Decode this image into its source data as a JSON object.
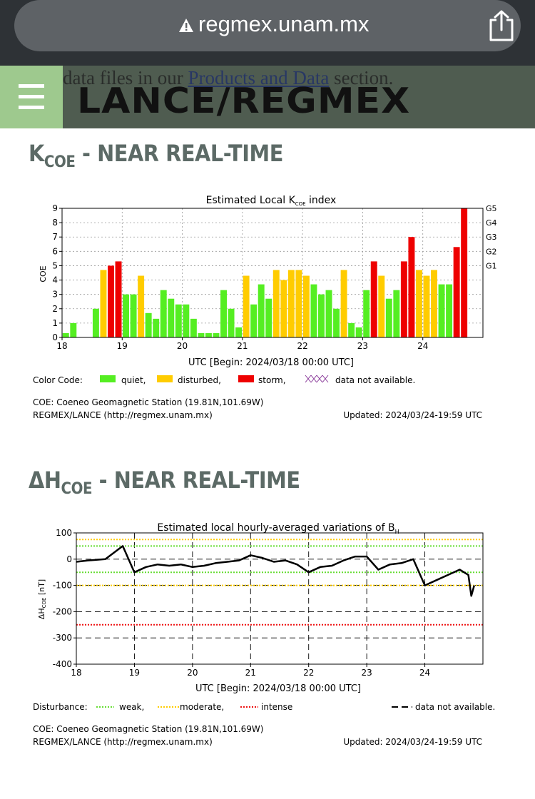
{
  "browser": {
    "url": "regmex.unam.mx"
  },
  "header": {
    "bleed_prefix": "data files in our ",
    "bleed_link": "Products and Data",
    "bleed_suffix": " section.",
    "logo": "LANCE/REGMEX"
  },
  "section1": {
    "title_main": "K",
    "title_sub": "COE",
    "title_rest": " - NEAR REAL-TIME"
  },
  "section2": {
    "title_main": "ΔH",
    "title_sub": "COE",
    "title_rest": " - NEAR REAL-TIME"
  },
  "chart1_text": {
    "title": "Estimated Local K",
    "title_sub": "COE",
    "title_rest": " index",
    "ylabel": "COE",
    "xlabel": "UTC [Begin: 2024/03/18 00:00 UTC]",
    "color_code_label": "Color Code:",
    "legend_quiet": "quiet,",
    "legend_disturbed": "disturbed,",
    "legend_storm": "storm,",
    "legend_na": "data not available.",
    "station": "COE: Coeneo Geomagnetic Station (19.81N,101.69W)",
    "credit": "REGMEX/LANCE (http://regmex.unam.mx)",
    "updated": "Updated: 2024/03/24-19:59 UTC",
    "g_labels": [
      "G5",
      "G4",
      "G3",
      "G2",
      "G1"
    ]
  },
  "chart2_text": {
    "title": "Estimated local hourly-averaged variations of B",
    "title_sub": "H",
    "ylabel": "ΔH",
    "ylabel_sub": "COE",
    "ylabel_unit": " [nT]",
    "xlabel": "UTC [Begin: 2024/03/18 00:00 UTC]",
    "disturbance_label": "Disturbance:",
    "legend_weak": "weak,",
    "legend_moderate": "moderate,",
    "legend_intense": "intense",
    "legend_na": "data not available.",
    "station": "COE: Coeneo Geomagnetic Station (19.81N,101.69W)",
    "credit": "REGMEX/LANCE (http://regmex.unam.mx)",
    "updated": "Updated: 2024/03/24-19:59 UTC"
  },
  "colors": {
    "quiet": "#55ee22",
    "disturbed": "#ffcc00",
    "storm": "#ee0000"
  },
  "chart_data": [
    {
      "type": "bar",
      "title": "Estimated Local K COE index",
      "ylabel": "COE",
      "xlabel": "UTC [Begin: 2024/03/18 00:00 UTC]",
      "x_ticks": [
        "18",
        "19",
        "20",
        "21",
        "22",
        "23",
        "24"
      ],
      "ylim": [
        0,
        9
      ],
      "interval_hours": 3,
      "values": [
        0.3,
        1.0,
        0,
        0,
        2.0,
        4.7,
        5.0,
        5.3,
        3.0,
        3.0,
        4.3,
        1.7,
        1.3,
        3.3,
        2.7,
        2.3,
        2.3,
        1.3,
        0.3,
        0.3,
        0.3,
        3.3,
        2.0,
        0.7,
        4.3,
        2.3,
        3.7,
        2.7,
        4.7,
        4.0,
        4.7,
        4.7,
        4.3,
        3.7,
        3.0,
        3.3,
        2.0,
        4.7,
        1.0,
        0.7,
        3.3,
        5.3,
        4.3,
        2.7,
        3.3,
        5.3,
        7.0,
        4.7,
        4.3,
        4.7,
        3.7,
        3.7,
        6.3,
        9.0
      ],
      "categories_legend": [
        "quiet",
        "disturbed",
        "storm"
      ],
      "right_axis": [
        "G5",
        "G4",
        "G3",
        "G2",
        "G1"
      ]
    },
    {
      "type": "line",
      "title": "Estimated local hourly-averaged variations of B H",
      "ylabel": "ΔH COE [nT]",
      "xlabel": "UTC [Begin: 2024/03/18 00:00 UTC]",
      "x_ticks": [
        "18",
        "19",
        "20",
        "21",
        "22",
        "23",
        "24"
      ],
      "ylim": [
        -400,
        100
      ],
      "y_ticks": [
        100,
        0,
        -100,
        -200,
        -300,
        -400
      ],
      "x_days": [
        0,
        0.2,
        0.5,
        0.8,
        1.0,
        1.2,
        1.4,
        1.6,
        1.8,
        2.0,
        2.2,
        2.4,
        2.6,
        2.8,
        3.0,
        3.2,
        3.4,
        3.6,
        3.8,
        4.0,
        4.2,
        4.4,
        4.6,
        4.8,
        5.0,
        5.2,
        5.4,
        5.6,
        5.8,
        6.0,
        6.2,
        6.4,
        6.6,
        6.75,
        6.8,
        6.85
      ],
      "values": [
        -10,
        -5,
        0,
        50,
        -50,
        -30,
        -20,
        -25,
        -20,
        -30,
        -25,
        -15,
        -10,
        -5,
        15,
        5,
        -10,
        -5,
        -20,
        -50,
        -30,
        -25,
        -5,
        10,
        10,
        -40,
        -20,
        -15,
        0,
        -100,
        -80,
        -60,
        -40,
        -60,
        -140,
        -100
      ],
      "thresholds": {
        "weak": [
          -50,
          50
        ],
        "moderate": [
          -100,
          75
        ],
        "intense": [
          -250
        ]
      }
    }
  ]
}
